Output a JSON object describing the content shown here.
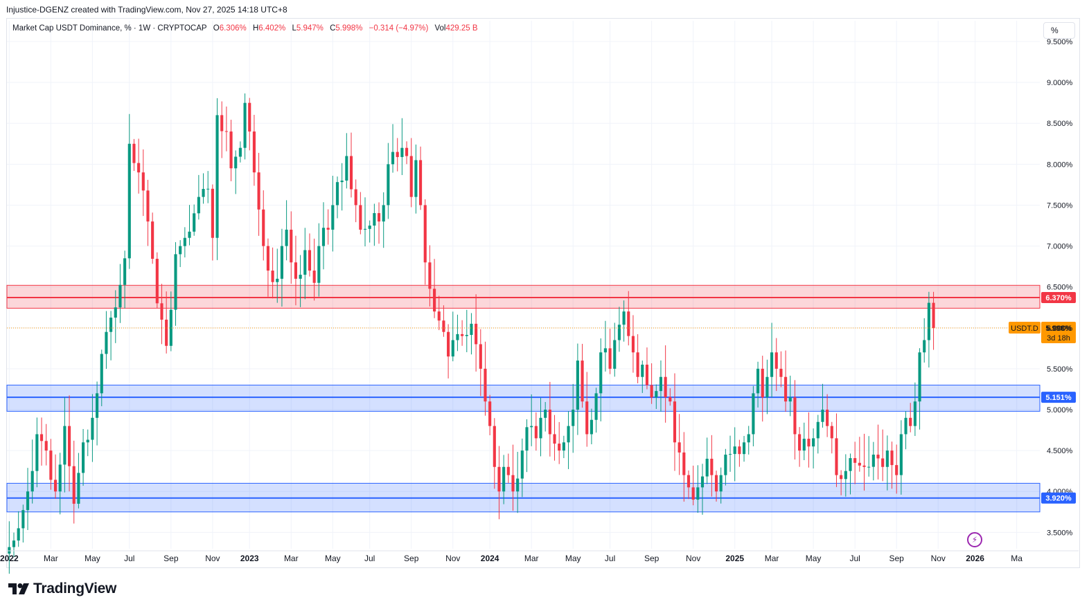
{
  "header": {
    "attribution": "Injustice-DGENZ created with TradingView.com, Nov 27, 2025 14:18 UTC+8"
  },
  "legend": {
    "title": "Market Cap USDT Dominance, % · 1W · CRYPTOCAP",
    "open_label": "O",
    "open": "6.306%",
    "high_label": "H",
    "high": "6.402%",
    "low_label": "L",
    "low": "5.947%",
    "close_label": "C",
    "close": "5.998%",
    "change": "−0.314 (−4.97%)",
    "vol_label": "Vol",
    "vol": "429.25 B"
  },
  "scale_button": "%",
  "footer": {
    "brand": "TradingView"
  },
  "colors": {
    "up": "#089981",
    "down": "#f23645",
    "red_zone": "#f23645",
    "blue_zone": "#2962ff",
    "price_tag": "#ff9800",
    "bolt": "#9c27b0"
  },
  "chart_data": {
    "type": "candlestick",
    "symbol": "USDT.D",
    "interval": "1W",
    "ylim": [
      3.3,
      9.5
    ],
    "y_ticks": [
      3.5,
      4.0,
      4.5,
      5.0,
      5.5,
      6.0,
      6.5,
      7.0,
      7.5,
      8.0,
      8.5,
      9.0,
      9.5
    ],
    "y_tick_labels": [
      "3.500%",
      "4.000%",
      "4.500%",
      "5.000%",
      "5.500%",
      "6.000%",
      "6.500%",
      "7.000%",
      "7.500%",
      "8.000%",
      "8.500%",
      "9.000%",
      "9.500%"
    ],
    "x_labels": [
      {
        "label": "2022",
        "week": 0,
        "bold": true
      },
      {
        "label": "Mar",
        "week": 9
      },
      {
        "label": "May",
        "week": 18
      },
      {
        "label": "Jul",
        "week": 26
      },
      {
        "label": "Sep",
        "week": 35
      },
      {
        "label": "Nov",
        "week": 44
      },
      {
        "label": "2023",
        "week": 52,
        "bold": true
      },
      {
        "label": "Mar",
        "week": 61
      },
      {
        "label": "May",
        "week": 70
      },
      {
        "label": "Jul",
        "week": 78
      },
      {
        "label": "Sep",
        "week": 87
      },
      {
        "label": "Nov",
        "week": 96
      },
      {
        "label": "2024",
        "week": 104,
        "bold": true
      },
      {
        "label": "Mar",
        "week": 113
      },
      {
        "label": "May",
        "week": 122
      },
      {
        "label": "Jul",
        "week": 130
      },
      {
        "label": "Sep",
        "week": 139
      },
      {
        "label": "Nov",
        "week": 148
      },
      {
        "label": "2025",
        "week": 157,
        "bold": true
      },
      {
        "label": "Mar",
        "week": 165
      },
      {
        "label": "May",
        "week": 174
      },
      {
        "label": "Jul",
        "week": 183
      },
      {
        "label": "Sep",
        "week": 192
      },
      {
        "label": "Nov",
        "week": 201
      },
      {
        "label": "2026",
        "week": 209,
        "bold": true
      },
      {
        "label": "Ma",
        "week": 218
      }
    ],
    "zones": [
      {
        "name": "resistance",
        "color": "red",
        "top": 6.52,
        "bottom": 6.24,
        "level": 6.37,
        "label": "6.370%"
      },
      {
        "name": "support-mid",
        "color": "blue",
        "top": 5.3,
        "bottom": 4.98,
        "level": 5.151,
        "label": "5.151%"
      },
      {
        "name": "support-low",
        "color": "blue",
        "top": 4.1,
        "bottom": 3.75,
        "level": 3.92,
        "label": "3.920%"
      }
    ],
    "last_price": {
      "value": 5.998,
      "label": "5.998%",
      "symbol": "USDT.D",
      "countdown": "3d 18h"
    },
    "anchors": [
      [
        0,
        3.32
      ],
      [
        1,
        3.4
      ],
      [
        2,
        3.55
      ],
      [
        4,
        4.0
      ],
      [
        5,
        4.25
      ],
      [
        6,
        4.7
      ],
      [
        8,
        4.5
      ],
      [
        10,
        4.0
      ],
      [
        12,
        4.8
      ],
      [
        14,
        3.85
      ],
      [
        16,
        4.6
      ],
      [
        18,
        4.9
      ],
      [
        19,
        5.2
      ],
      [
        21,
        5.95
      ],
      [
        23,
        6.25
      ],
      [
        25,
        6.85
      ],
      [
        26,
        8.25
      ],
      [
        28,
        7.9
      ],
      [
        30,
        7.3
      ],
      [
        32,
        6.3
      ],
      [
        33,
        6.1
      ],
      [
        34,
        5.78
      ],
      [
        36,
        6.9
      ],
      [
        38,
        7.1
      ],
      [
        40,
        7.4
      ],
      [
        41,
        7.6
      ],
      [
        43,
        7.7
      ],
      [
        44,
        7.1
      ],
      [
        45,
        8.6
      ],
      [
        47,
        8.4
      ],
      [
        48,
        7.95
      ],
      [
        50,
        8.2
      ],
      [
        51,
        8.75
      ],
      [
        52,
        8.4
      ],
      [
        53,
        7.9
      ],
      [
        55,
        7.0
      ],
      [
        56,
        6.7
      ],
      [
        58,
        6.6
      ],
      [
        59,
        7.0
      ],
      [
        60,
        7.2
      ],
      [
        61,
        6.8
      ],
      [
        62,
        6.6
      ],
      [
        64,
        6.95
      ],
      [
        65,
        6.7
      ],
      [
        66,
        6.55
      ],
      [
        67,
        7.0
      ],
      [
        69,
        7.2
      ],
      [
        70,
        7.5
      ],
      [
        72,
        7.8
      ],
      [
        73,
        8.1
      ],
      [
        75,
        7.5
      ],
      [
        76,
        7.2
      ],
      [
        78,
        7.25
      ],
      [
        80,
        7.3
      ],
      [
        81,
        7.5
      ],
      [
        82,
        8.0
      ],
      [
        83,
        8.15
      ],
      [
        85,
        8.2
      ],
      [
        86,
        8.1
      ],
      [
        87,
        7.6
      ],
      [
        88,
        8.05
      ],
      [
        89,
        7.5
      ],
      [
        90,
        6.8
      ],
      [
        92,
        6.2
      ],
      [
        94,
        5.95
      ],
      [
        95,
        5.65
      ],
      [
        96,
        5.85
      ],
      [
        98,
        5.9
      ],
      [
        100,
        6.05
      ],
      [
        101,
        5.8
      ],
      [
        102,
        5.5
      ],
      [
        103,
        5.1
      ],
      [
        104,
        4.8
      ],
      [
        105,
        4.3
      ],
      [
        106,
        4.0
      ],
      [
        107,
        4.3
      ],
      [
        108,
        4.2
      ],
      [
        109,
        4.0
      ],
      [
        111,
        4.5
      ],
      [
        113,
        4.8
      ],
      [
        114,
        4.65
      ],
      [
        115,
        4.9
      ],
      [
        116,
        5.0
      ],
      [
        117,
        4.7
      ],
      [
        119,
        4.5
      ],
      [
        120,
        4.6
      ],
      [
        121,
        4.8
      ],
      [
        122,
        5.0
      ],
      [
        123,
        5.6
      ],
      [
        124,
        5.1
      ],
      [
        125,
        4.7
      ],
      [
        127,
        5.2
      ],
      [
        128,
        5.7
      ],
      [
        129,
        5.75
      ],
      [
        130,
        5.5
      ],
      [
        131,
        5.85
      ],
      [
        133,
        6.2
      ],
      [
        134,
        5.9
      ],
      [
        135,
        5.7
      ],
      [
        136,
        5.4
      ],
      [
        137,
        5.55
      ],
      [
        138,
        5.3
      ],
      [
        139,
        5.15
      ],
      [
        141,
        5.4
      ],
      [
        143,
        5.1
      ],
      [
        144,
        4.6
      ],
      [
        146,
        4.2
      ],
      [
        147,
        4.05
      ],
      [
        148,
        3.9
      ],
      [
        149,
        4.05
      ],
      [
        151,
        4.4
      ],
      [
        152,
        4.2
      ],
      [
        153,
        4.0
      ],
      [
        154,
        4.2
      ],
      [
        155,
        4.45
      ],
      [
        157,
        4.55
      ],
      [
        159,
        4.6
      ],
      [
        160,
        4.7
      ],
      [
        161,
        5.2
      ],
      [
        162,
        5.5
      ],
      [
        163,
        5.15
      ],
      [
        164,
        5.4
      ],
      [
        165,
        5.7
      ],
      [
        166,
        5.5
      ],
      [
        167,
        5.4
      ],
      [
        168,
        5.1
      ],
      [
        169,
        5.15
      ],
      [
        170,
        4.7
      ],
      [
        171,
        4.5
      ],
      [
        173,
        4.55
      ],
      [
        174,
        4.65
      ],
      [
        175,
        4.85
      ],
      [
        176,
        5.0
      ],
      [
        177,
        4.8
      ],
      [
        178,
        4.65
      ],
      [
        179,
        4.2
      ],
      [
        181,
        4.25
      ],
      [
        183,
        4.35
      ],
      [
        185,
        4.3
      ],
      [
        187,
        4.45
      ],
      [
        189,
        4.3
      ],
      [
        190,
        4.5
      ],
      [
        192,
        4.2
      ],
      [
        193,
        4.7
      ],
      [
        194,
        4.9
      ],
      [
        195,
        4.8
      ],
      [
        196,
        5.1
      ],
      [
        197,
        5.7
      ],
      [
        198,
        5.85
      ],
      [
        199,
        6.306
      ],
      [
        200,
        5.998
      ]
    ],
    "x_axis_weeks": [
      -0.5,
      223
    ],
    "grid": true
  }
}
